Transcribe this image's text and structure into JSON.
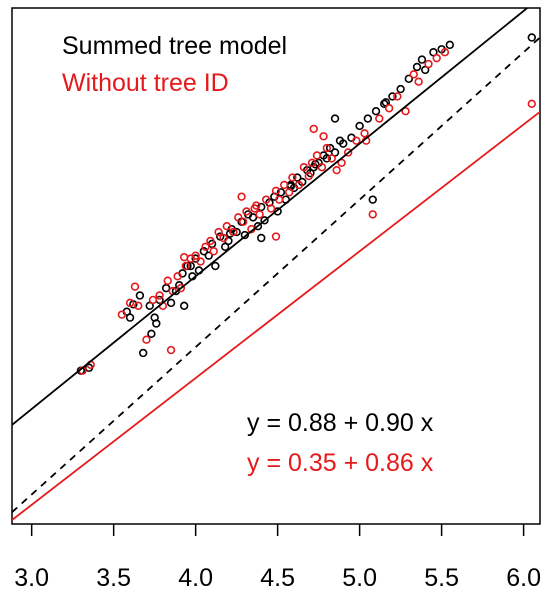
{
  "chart_data": {
    "type": "scatter",
    "title": "",
    "xlabel": "",
    "ylabel": "",
    "xlim": [
      2.88,
      6.1
    ],
    "ylim": [
      2.8,
      6.3
    ],
    "x_ticks": [
      3.0,
      3.5,
      4.0,
      4.5,
      5.0,
      5.5,
      6.0
    ],
    "x_tick_labels": [
      "3.0",
      "3.5",
      "4.0",
      "4.5",
      "5.0",
      "5.5",
      "6.0"
    ],
    "y_axis_shown": false,
    "grid": false,
    "legend": {
      "position": "top-left",
      "entries": [
        {
          "label": "Summed tree model",
          "color": "#000000"
        },
        {
          "label": "Without tree ID",
          "color": "#e41a1c"
        }
      ]
    },
    "reference_line": {
      "style": "dashed",
      "intercept": 0,
      "slope": 1,
      "color": "#000000"
    },
    "series": [
      {
        "name": "Summed tree model",
        "color": "#000000",
        "fit": {
          "label": "y = 0.88 + 0.90 x",
          "intercept": 0.88,
          "slope": 0.9
        },
        "points": [
          [
            3.3,
            3.84
          ],
          [
            3.35,
            3.86
          ],
          [
            3.58,
            4.24
          ],
          [
            3.6,
            4.2
          ],
          [
            3.62,
            4.29
          ],
          [
            3.66,
            4.35
          ],
          [
            3.68,
            3.96
          ],
          [
            3.72,
            4.28
          ],
          [
            3.75,
            4.2
          ],
          [
            3.78,
            4.32
          ],
          [
            3.82,
            4.4
          ],
          [
            3.85,
            4.3
          ],
          [
            3.88,
            4.38
          ],
          [
            3.9,
            4.42
          ],
          [
            3.92,
            4.5
          ],
          [
            3.95,
            4.55
          ],
          [
            3.98,
            4.48
          ],
          [
            4.0,
            4.6
          ],
          [
            4.02,
            4.52
          ],
          [
            4.05,
            4.65
          ],
          [
            4.08,
            4.62
          ],
          [
            4.1,
            4.7
          ],
          [
            4.12,
            4.55
          ],
          [
            4.15,
            4.75
          ],
          [
            4.18,
            4.68
          ],
          [
            4.2,
            4.72
          ],
          [
            4.22,
            4.8
          ],
          [
            4.25,
            4.78
          ],
          [
            4.28,
            4.85
          ],
          [
            4.3,
            4.76
          ],
          [
            4.32,
            4.9
          ],
          [
            4.35,
            4.88
          ],
          [
            4.38,
            4.82
          ],
          [
            4.4,
            4.95
          ],
          [
            4.42,
            4.86
          ],
          [
            4.45,
            4.98
          ],
          [
            4.48,
            5.02
          ],
          [
            4.5,
            4.92
          ],
          [
            4.52,
            5.05
          ],
          [
            4.55,
            5.0
          ],
          [
            4.58,
            5.1
          ],
          [
            4.6,
            5.08
          ],
          [
            4.62,
            5.15
          ],
          [
            4.65,
            5.12
          ],
          [
            4.68,
            5.2
          ],
          [
            4.7,
            5.18
          ],
          [
            4.72,
            5.22
          ],
          [
            4.75,
            5.25
          ],
          [
            4.78,
            5.3
          ],
          [
            4.8,
            5.28
          ],
          [
            4.82,
            5.35
          ],
          [
            4.85,
            5.32
          ],
          [
            4.88,
            5.4
          ],
          [
            4.9,
            5.38
          ],
          [
            4.95,
            5.42
          ],
          [
            5.0,
            5.5
          ],
          [
            5.05,
            5.55
          ],
          [
            5.08,
            5.0
          ],
          [
            5.1,
            5.6
          ],
          [
            5.15,
            5.65
          ],
          [
            5.2,
            5.7
          ],
          [
            5.25,
            5.75
          ],
          [
            5.3,
            5.82
          ],
          [
            5.35,
            5.9
          ],
          [
            5.38,
            5.95
          ],
          [
            5.4,
            5.88
          ],
          [
            5.45,
            6.0
          ],
          [
            5.5,
            6.02
          ],
          [
            5.55,
            6.05
          ],
          [
            6.05,
            6.1
          ],
          [
            4.21,
            4.77
          ],
          [
            4.4,
            4.74
          ],
          [
            3.97,
            4.55
          ],
          [
            3.93,
            4.28
          ],
          [
            4.58,
            5.09
          ],
          [
            4.85,
            5.55
          ],
          [
            4.73,
            5.24
          ],
          [
            5.16,
            5.66
          ],
          [
            3.76,
            4.16
          ],
          [
            3.73,
            4.09
          ]
        ]
      },
      {
        "name": "Without tree ID",
        "color": "#e41a1c",
        "fit": {
          "label": "y = 0.35 + 0.86 x",
          "intercept": 0.35,
          "slope": 0.86
        },
        "points": [
          [
            3.31,
            3.84
          ],
          [
            3.36,
            3.88
          ],
          [
            3.55,
            4.22
          ],
          [
            3.6,
            4.3
          ],
          [
            3.65,
            4.28
          ],
          [
            3.7,
            4.05
          ],
          [
            3.74,
            4.32
          ],
          [
            3.78,
            4.35
          ],
          [
            3.8,
            4.28
          ],
          [
            3.83,
            4.45
          ],
          [
            3.86,
            4.38
          ],
          [
            3.89,
            4.48
          ],
          [
            3.91,
            4.4
          ],
          [
            3.94,
            4.55
          ],
          [
            3.97,
            4.6
          ],
          [
            4.0,
            4.62
          ],
          [
            4.03,
            4.58
          ],
          [
            4.06,
            4.68
          ],
          [
            4.09,
            4.72
          ],
          [
            4.11,
            4.65
          ],
          [
            4.14,
            4.78
          ],
          [
            4.17,
            4.74
          ],
          [
            4.19,
            4.82
          ],
          [
            4.23,
            4.78
          ],
          [
            4.26,
            4.88
          ],
          [
            4.29,
            4.85
          ],
          [
            4.31,
            4.92
          ],
          [
            4.34,
            4.8
          ],
          [
            4.37,
            4.96
          ],
          [
            4.39,
            4.9
          ],
          [
            4.43,
            5.0
          ],
          [
            4.46,
            4.94
          ],
          [
            4.49,
            5.06
          ],
          [
            4.51,
            5.0
          ],
          [
            4.54,
            5.1
          ],
          [
            4.57,
            5.05
          ],
          [
            4.59,
            5.15
          ],
          [
            4.63,
            5.1
          ],
          [
            4.66,
            5.22
          ],
          [
            4.69,
            5.16
          ],
          [
            4.71,
            5.25
          ],
          [
            4.74,
            5.3
          ],
          [
            4.77,
            5.22
          ],
          [
            4.8,
            5.35
          ],
          [
            4.83,
            5.28
          ],
          [
            4.86,
            5.2
          ],
          [
            4.89,
            5.25
          ],
          [
            4.93,
            5.32
          ],
          [
            4.98,
            5.4
          ],
          [
            5.03,
            5.45
          ],
          [
            5.08,
            4.9
          ],
          [
            5.12,
            5.55
          ],
          [
            5.18,
            5.62
          ],
          [
            5.23,
            5.7
          ],
          [
            5.28,
            5.6
          ],
          [
            5.33,
            5.85
          ],
          [
            5.36,
            5.8
          ],
          [
            5.42,
            5.92
          ],
          [
            5.47,
            5.96
          ],
          [
            5.52,
            6.0
          ],
          [
            6.05,
            5.65
          ],
          [
            3.85,
            3.98
          ],
          [
            4.28,
            5.02
          ],
          [
            4.49,
            4.75
          ],
          [
            3.63,
            4.41
          ],
          [
            3.93,
            4.61
          ],
          [
            4.72,
            5.48
          ],
          [
            5.04,
            5.4
          ],
          [
            4.78,
            5.43
          ],
          [
            4.36,
            4.94
          ]
        ]
      }
    ]
  }
}
